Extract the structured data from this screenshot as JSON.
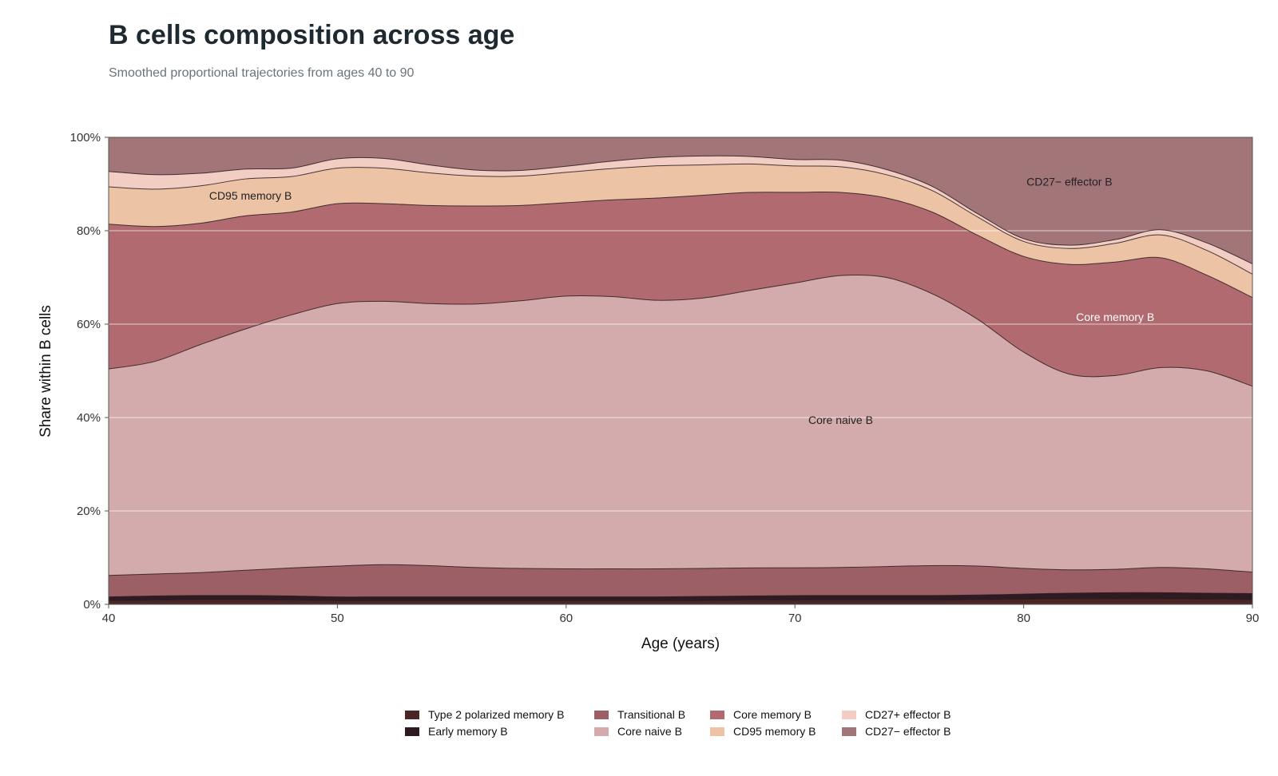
{
  "chart_data": {
    "type": "area",
    "stacked": true,
    "normalized": true,
    "title": "B cells composition across age",
    "subtitle": "Smoothed proportional trajectories from ages 40 to 90",
    "xlabel": "Age (years)",
    "ylabel": "Share within B cells",
    "xlim": [
      40,
      90
    ],
    "ylim": [
      0,
      100
    ],
    "x_ticks": [
      40,
      50,
      60,
      70,
      80,
      90
    ],
    "y_ticks": [
      0,
      20,
      40,
      60,
      80,
      100
    ],
    "y_tick_labels": [
      "0%",
      "20%",
      "40%",
      "60%",
      "80%",
      "100%"
    ],
    "grid": "horizontal",
    "legend_position": "bottom",
    "x": [
      40,
      42,
      44,
      46,
      48,
      50,
      52,
      54,
      56,
      58,
      60,
      62,
      64,
      66,
      68,
      70,
      72,
      74,
      76,
      78,
      80,
      82,
      84,
      86,
      88,
      90
    ],
    "series": [
      {
        "name": "Type 2 polarized memory B",
        "color": "#4a2626",
        "values": [
          0.8,
          0.9,
          1.0,
          1.0,
          0.9,
          0.8,
          0.8,
          0.8,
          0.8,
          0.8,
          0.8,
          0.8,
          0.8,
          0.8,
          0.9,
          0.9,
          0.9,
          0.9,
          0.9,
          1.0,
          1.1,
          1.2,
          1.2,
          1.2,
          1.1,
          1.0
        ]
      },
      {
        "name": "Early memory B",
        "color": "#2e1a22",
        "values": [
          0.8,
          0.9,
          0.9,
          0.9,
          0.9,
          0.8,
          0.8,
          0.8,
          0.8,
          0.8,
          0.8,
          0.8,
          0.8,
          0.9,
          0.9,
          1.0,
          1.0,
          1.0,
          1.0,
          1.0,
          1.1,
          1.2,
          1.3,
          1.3,
          1.3,
          1.3
        ]
      },
      {
        "name": "Transitional B",
        "color": "#9c5f66",
        "values": [
          4.6,
          4.7,
          4.9,
          5.4,
          6.0,
          6.6,
          6.9,
          6.7,
          6.3,
          6.1,
          6.0,
          6.0,
          6.0,
          6.0,
          6.0,
          6.0,
          6.0,
          6.2,
          6.4,
          6.2,
          5.5,
          5.0,
          5.0,
          5.4,
          5.2,
          4.6
        ]
      },
      {
        "name": "Core naive B",
        "color": "#d4abac",
        "values": [
          44.2,
          45.5,
          48.8,
          51.7,
          54.2,
          56.2,
          56.4,
          56.1,
          56.4,
          57.3,
          58.4,
          58.3,
          57.5,
          57.9,
          59.4,
          61.6,
          62.5,
          61.9,
          58.2,
          52.8,
          46.3,
          41.9,
          41.5,
          42.8,
          42.4,
          39.8
        ]
      },
      {
        "name": "Core memory B",
        "color": "#b06a70",
        "values": [
          31.0,
          28.9,
          26.0,
          24.2,
          22.0,
          21.4,
          20.9,
          21.0,
          21.0,
          20.4,
          20.0,
          20.7,
          21.9,
          22.0,
          21.0,
          19.6,
          17.8,
          17.0,
          17.5,
          18.0,
          20.5,
          23.5,
          24.3,
          23.5,
          20.5,
          19.0
        ]
      },
      {
        "name": "CD95 memory B",
        "color": "#edc3a5",
        "values": [
          8.0,
          8.0,
          8.0,
          7.9,
          7.6,
          7.6,
          7.6,
          7.0,
          6.4,
          6.3,
          6.5,
          6.7,
          6.9,
          6.5,
          6.1,
          5.7,
          5.5,
          5.0,
          4.6,
          3.9,
          3.2,
          3.4,
          4.0,
          4.9,
          5.3,
          5.0
        ]
      },
      {
        "name": "CD27+ effector B",
        "color": "#f2cdc4",
        "values": [
          3.3,
          3.1,
          2.7,
          2.1,
          1.8,
          2.0,
          2.1,
          1.7,
          1.3,
          1.2,
          1.3,
          1.6,
          1.8,
          1.9,
          1.6,
          1.4,
          1.4,
          1.1,
          0.9,
          0.7,
          0.6,
          0.7,
          0.8,
          1.1,
          1.6,
          2.2
        ]
      },
      {
        "name": "CD27− effector B",
        "color": "#a27578",
        "values": [
          7.3,
          8.0,
          7.7,
          6.8,
          6.6,
          4.6,
          4.5,
          5.9,
          7.0,
          7.1,
          6.2,
          5.1,
          4.3,
          4.0,
          4.1,
          4.8,
          4.9,
          6.9,
          10.5,
          16.4,
          21.7,
          23.1,
          21.9,
          19.8,
          22.6,
          27.1
        ]
      }
    ],
    "annotations": [
      {
        "text": "CD95 memory B",
        "x": 46.2,
        "y": 87.5,
        "color": "#222222"
      },
      {
        "text": "CD27− effector B",
        "x": 82.0,
        "y": 90.5,
        "color": "#222222"
      },
      {
        "text": "Core memory B",
        "x": 84.0,
        "y": 61.5,
        "color": "#ffffff"
      },
      {
        "text": "Core naive B",
        "x": 72.0,
        "y": 39.5,
        "color": "#222222"
      }
    ],
    "legend_order": [
      "Type 2 polarized memory B",
      "Early memory B",
      "Transitional B",
      "Core naive B",
      "Core memory B",
      "CD95 memory B",
      "CD27+ effector B",
      "CD27− effector B"
    ]
  }
}
